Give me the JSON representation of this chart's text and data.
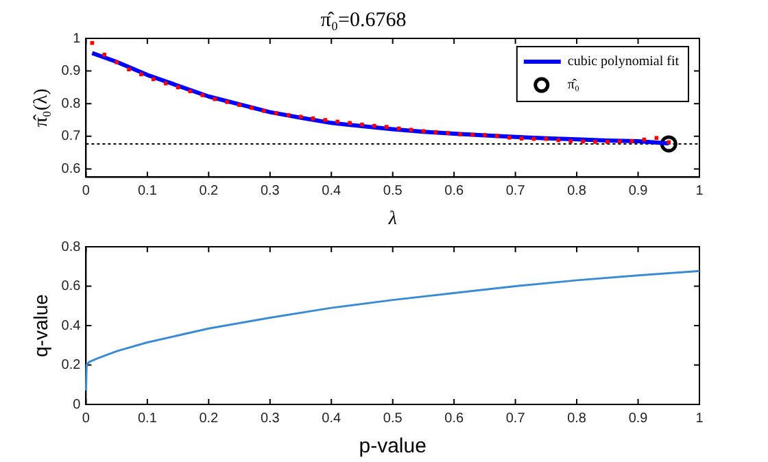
{
  "chart_data": [
    {
      "type": "scatter",
      "title": "π̂₀=0.6768",
      "xlabel": "λ",
      "ylabel": "π̂₀(λ)",
      "xlim": [
        0,
        1
      ],
      "xticks": [
        0,
        0.1,
        0.2,
        0.3,
        0.4,
        0.5,
        0.6,
        0.7,
        0.8,
        0.9,
        1
      ],
      "ylim": [
        0.575,
        1
      ],
      "yticks": [
        0.6,
        0.7,
        0.8,
        0.9,
        1
      ],
      "grid": false,
      "legend": "top right",
      "series": [
        {
          "type": "scatter",
          "marker": "square",
          "color": "#ff0000",
          "x": [
            0.01,
            0.03,
            0.05,
            0.07,
            0.09,
            0.11,
            0.13,
            0.15,
            0.17,
            0.19,
            0.21,
            0.23,
            0.25,
            0.27,
            0.29,
            0.31,
            0.33,
            0.35,
            0.37,
            0.39,
            0.41,
            0.43,
            0.45,
            0.47,
            0.49,
            0.51,
            0.53,
            0.55,
            0.57,
            0.59,
            0.61,
            0.63,
            0.65,
            0.67,
            0.69,
            0.71,
            0.73,
            0.75,
            0.77,
            0.79,
            0.81,
            0.83,
            0.85,
            0.87,
            0.89,
            0.91,
            0.93,
            0.95
          ],
          "values": [
            0.986,
            0.95,
            0.927,
            0.905,
            0.89,
            0.875,
            0.862,
            0.85,
            0.838,
            0.826,
            0.814,
            0.805,
            0.796,
            0.787,
            0.778,
            0.771,
            0.765,
            0.76,
            0.755,
            0.75,
            0.745,
            0.741,
            0.736,
            0.732,
            0.729,
            0.724,
            0.72,
            0.716,
            0.713,
            0.71,
            0.706,
            0.705,
            0.704,
            0.701,
            0.696,
            0.693,
            0.692,
            0.692,
            0.688,
            0.685,
            0.684,
            0.683,
            0.683,
            0.684,
            0.685,
            0.69,
            0.695,
            0.682
          ]
        },
        {
          "type": "line",
          "name": "cubic polynomial fit",
          "color": "#0000ff",
          "marker": "none",
          "line_style": "solid",
          "x": [
            0.01,
            0.05,
            0.1,
            0.15,
            0.2,
            0.25,
            0.3,
            0.35,
            0.4,
            0.45,
            0.5,
            0.55,
            0.6,
            0.65,
            0.7,
            0.75,
            0.8,
            0.85,
            0.9,
            0.95
          ],
          "values": [
            0.955,
            0.928,
            0.888,
            0.855,
            0.822,
            0.798,
            0.774,
            0.757,
            0.741,
            0.731,
            0.722,
            0.714,
            0.708,
            0.703,
            0.698,
            0.694,
            0.691,
            0.687,
            0.685,
            0.678
          ]
        },
        {
          "type": "scatter",
          "name": "π̂₀",
          "marker": "circle",
          "color": "#000000",
          "x": [
            0.95
          ],
          "values": [
            0.6768
          ]
        }
      ],
      "ref_lines": [
        {
          "axis": "y",
          "value": 0.6768,
          "color": "#000000",
          "line_style": "dotted"
        }
      ]
    },
    {
      "type": "line",
      "xlabel": "p-value",
      "ylabel": "q-value",
      "xlim": [
        0,
        1
      ],
      "xticks": [
        0,
        0.1,
        0.2,
        0.3,
        0.4,
        0.5,
        0.6,
        0.7,
        0.8,
        0.9,
        1
      ],
      "ylim": [
        0,
        0.8
      ],
      "yticks": [
        0,
        0.2,
        0.4,
        0.6,
        0.8
      ],
      "grid": false,
      "legend": false,
      "series": [
        {
          "color": "#3a8bd6",
          "marker": "none",
          "line_style": "solid",
          "x": [
            0,
            0.001,
            0.005,
            0.02,
            0.05,
            0.1,
            0.2,
            0.3,
            0.4,
            0.5,
            0.6,
            0.7,
            0.8,
            0.9,
            1
          ],
          "values": [
            0.07,
            0.2,
            0.215,
            0.235,
            0.27,
            0.315,
            0.385,
            0.44,
            0.49,
            0.53,
            0.565,
            0.6,
            0.63,
            0.655,
            0.677
          ]
        }
      ]
    }
  ]
}
